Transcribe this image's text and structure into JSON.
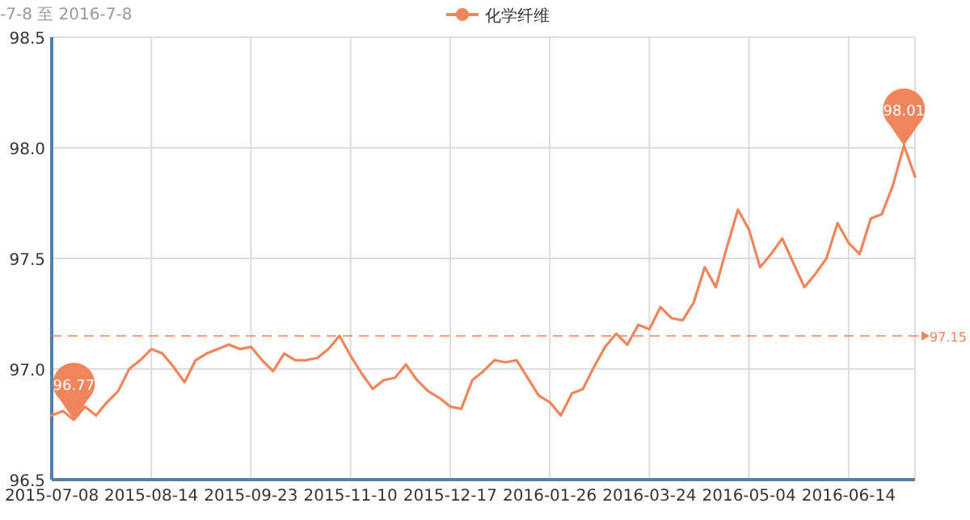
{
  "chart_data": {
    "type": "line",
    "title": "-7-8 至 2016-7-8",
    "categories": [
      "2015-07-08",
      null,
      null,
      null,
      null,
      null,
      null,
      null,
      null,
      "2015-08-14",
      null,
      null,
      null,
      null,
      null,
      null,
      null,
      null,
      "2015-09-23",
      null,
      null,
      null,
      null,
      null,
      null,
      null,
      null,
      "2015-11-10",
      null,
      null,
      null,
      null,
      null,
      null,
      null,
      null,
      "2015-12-17",
      null,
      null,
      null,
      null,
      null,
      null,
      null,
      null,
      "2016-01-26",
      null,
      null,
      null,
      null,
      null,
      null,
      null,
      null,
      "2016-03-24",
      null,
      null,
      null,
      null,
      null,
      null,
      null,
      null,
      "2016-05-04",
      null,
      null,
      null,
      null,
      null,
      null,
      null,
      null,
      "2016-06-14",
      null,
      null,
      null,
      null,
      null,
      null
    ],
    "series": [
      {
        "name": "化学纤维",
        "color": "#f0845a",
        "values": [
          96.79,
          96.81,
          96.77,
          96.83,
          96.79,
          96.85,
          96.9,
          97.0,
          97.04,
          97.09,
          97.07,
          97.01,
          96.94,
          97.04,
          97.07,
          97.09,
          97.11,
          97.09,
          97.1,
          97.04,
          96.99,
          97.07,
          97.04,
          97.04,
          97.05,
          97.09,
          97.15,
          97.06,
          96.98,
          96.91,
          96.95,
          96.96,
          97.02,
          96.95,
          96.9,
          96.87,
          96.83,
          96.82,
          96.95,
          96.99,
          97.04,
          97.03,
          97.04,
          96.96,
          96.88,
          96.85,
          96.79,
          96.89,
          96.91,
          97.01,
          97.1,
          97.16,
          97.11,
          97.2,
          97.18,
          97.28,
          97.23,
          97.22,
          97.3,
          97.46,
          97.37,
          97.55,
          97.72,
          97.63,
          97.46,
          97.52,
          97.59,
          97.48,
          97.37,
          97.43,
          97.5,
          97.66,
          97.57,
          97.52,
          97.68,
          97.7,
          97.83,
          98.01,
          97.87
        ],
        "value_labels": [
          null,
          null,
          "96.77",
          null,
          null,
          null,
          null,
          null,
          null,
          null,
          null,
          null,
          null,
          null,
          null,
          null,
          null,
          null,
          null,
          null,
          null,
          null,
          null,
          null,
          null,
          null,
          null,
          null,
          null,
          null,
          null,
          null,
          null,
          null,
          null,
          null,
          null,
          null,
          null,
          null,
          null,
          null,
          null,
          null,
          null,
          null,
          null,
          null,
          null,
          null,
          null,
          null,
          null,
          null,
          null,
          null,
          null,
          null,
          null,
          null,
          null,
          null,
          null,
          null,
          null,
          null,
          null,
          null,
          null,
          null,
          null,
          null,
          null,
          null,
          null,
          null,
          null,
          "98.01",
          null
        ]
      }
    ],
    "ylim": [
      96.5,
      98.5
    ],
    "yticks": [
      96.5,
      {
        "value": 97,
        "label": "97.0"
      },
      97.5,
      {
        "value": 98,
        "label": "98.0"
      },
      98.5
    ],
    "ref_lines": [
      {
        "axis": "y",
        "value": 97.15,
        "label": "97.15",
        "color": "#f0845a",
        "line_style": "dashed"
      }
    ],
    "grid": true,
    "legend": "top"
  }
}
